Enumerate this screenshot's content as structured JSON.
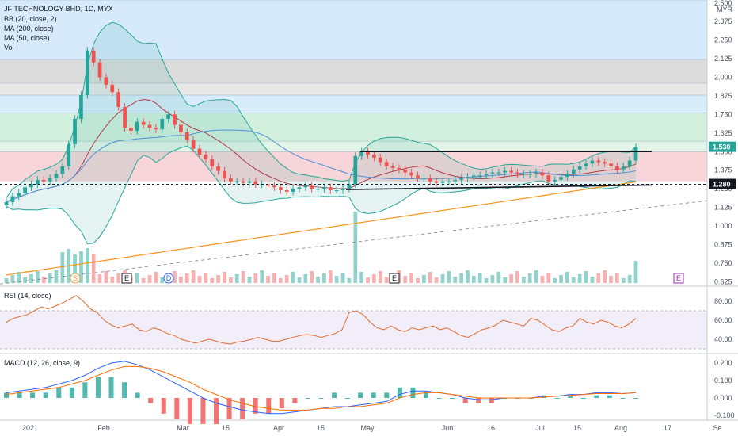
{
  "chart_data": {
    "type": "candlestick",
    "title": "JF TECHNOLOGY BHD, 1D, MYX",
    "currency": "MYR",
    "indicators": [
      "BB (20, close, 2)",
      "MA (200, close)",
      "MA (50, close)",
      "Vol"
    ],
    "price_axis": {
      "ticks": [
        "2.500",
        "2.375",
        "2.250",
        "2.125",
        "2.000",
        "1.875",
        "1.750",
        "1.625",
        "1.500",
        "1.375",
        "1.250",
        "1.125",
        "1.000",
        "0.875",
        "0.750",
        "0.625"
      ],
      "range": [
        0.6,
        2.52
      ]
    },
    "last_price": "1.530",
    "support_line_label": "1.280",
    "x_ticks": [
      "2021",
      "Feb",
      "Mar",
      "15",
      "Apr",
      "15",
      "May",
      "Jun",
      "16",
      "Jul",
      "15",
      "Aug",
      "17",
      "Se"
    ],
    "event_markers": [
      "S",
      "E",
      "D",
      "E",
      "E"
    ],
    "price_bands": [
      {
        "from": 2.12,
        "to": 2.52,
        "color": "#d6eafc"
      },
      {
        "from": 1.96,
        "to": 2.12,
        "color": "#dcdcdc"
      },
      {
        "from": 1.88,
        "to": 1.96,
        "color": "#e8e8e8"
      },
      {
        "from": 1.76,
        "to": 1.88,
        "color": "#d8ecfa"
      },
      {
        "from": 1.57,
        "to": 1.76,
        "color": "#d3efdd"
      },
      {
        "from": 1.5,
        "to": 1.57,
        "color": "#e3f4e8"
      },
      {
        "from": 1.3,
        "to": 1.5,
        "color": "#f7d5d8"
      }
    ],
    "close_series": [
      1.16,
      1.2,
      1.22,
      1.26,
      1.28,
      1.31,
      1.3,
      1.32,
      1.35,
      1.4,
      1.55,
      1.72,
      1.88,
      2.18,
      2.1,
      2.0,
      1.95,
      1.9,
      1.8,
      1.66,
      1.64,
      1.7,
      1.68,
      1.66,
      1.65,
      1.72,
      1.75,
      1.68,
      1.63,
      1.58,
      1.52,
      1.48,
      1.45,
      1.4,
      1.37,
      1.32,
      1.3,
      1.3,
      1.29,
      1.3,
      1.28,
      1.28,
      1.27,
      1.26,
      1.24,
      1.23,
      1.25,
      1.26,
      1.27,
      1.25,
      1.25,
      1.26,
      1.24,
      1.24,
      1.25,
      1.28,
      1.47,
      1.5,
      1.48,
      1.46,
      1.43,
      1.4,
      1.39,
      1.38,
      1.36,
      1.34,
      1.32,
      1.32,
      1.3,
      1.29,
      1.3,
      1.3,
      1.31,
      1.32,
      1.33,
      1.34,
      1.34,
      1.35,
      1.36,
      1.36,
      1.37,
      1.36,
      1.35,
      1.35,
      1.35,
      1.36,
      1.34,
      1.3,
      1.31,
      1.33,
      1.35,
      1.38,
      1.4,
      1.42,
      1.44,
      1.43,
      1.42,
      1.4,
      1.38,
      1.4,
      1.44,
      1.53
    ],
    "rsi": {
      "label": "RSI (14, close)",
      "ticks": [
        "80.00",
        "60.00",
        "40.00"
      ],
      "values": [
        58,
        62,
        64,
        66,
        70,
        74,
        72,
        75,
        78,
        82,
        86,
        80,
        72,
        68,
        60,
        55,
        52,
        54,
        56,
        50,
        48,
        52,
        50,
        46,
        44,
        40,
        38,
        36,
        38,
        40,
        38,
        36,
        35,
        37,
        38,
        40,
        42,
        40,
        38,
        38,
        40,
        42,
        44,
        45,
        44,
        42,
        44,
        46,
        50,
        68,
        70,
        66,
        58,
        52,
        50,
        54,
        50,
        48,
        52,
        50,
        52,
        54,
        50,
        52,
        48,
        44,
        42,
        46,
        50,
        52,
        55,
        60,
        58,
        56,
        54,
        62,
        60,
        55,
        50,
        48,
        52,
        54,
        62,
        58,
        56,
        60,
        58,
        54,
        52,
        56,
        62
      ]
    },
    "macd": {
      "label": "MACD (12, 26, close, 9)",
      "ticks": [
        "0.200",
        "0.100",
        "0.000",
        "-0.100"
      ],
      "macd_line": [
        0.03,
        0.04,
        0.05,
        0.06,
        0.08,
        0.1,
        0.13,
        0.17,
        0.2,
        0.21,
        0.19,
        0.16,
        0.12,
        0.08,
        0.04,
        0.0,
        -0.03,
        -0.05,
        -0.07,
        -0.08,
        -0.09,
        -0.09,
        -0.08,
        -0.07,
        -0.06,
        -0.05,
        -0.05,
        -0.04,
        -0.03,
        -0.02,
        0.02,
        0.04,
        0.04,
        0.03,
        0.02,
        0.0,
        -0.01,
        -0.01,
        0.0,
        0.0,
        0.0,
        0.01,
        0.01,
        0.02,
        0.02,
        0.03,
        0.03,
        0.025,
        0.03
      ],
      "signal_line": [
        0.02,
        0.03,
        0.04,
        0.05,
        0.06,
        0.08,
        0.1,
        0.13,
        0.16,
        0.18,
        0.18,
        0.17,
        0.15,
        0.12,
        0.09,
        0.05,
        0.02,
        -0.01,
        -0.03,
        -0.05,
        -0.06,
        -0.07,
        -0.07,
        -0.07,
        -0.06,
        -0.06,
        -0.05,
        -0.05,
        -0.04,
        -0.03,
        0.0,
        0.02,
        0.03,
        0.03,
        0.02,
        0.01,
        0.0,
        0.0,
        0.0,
        0.0,
        0.0,
        0.005,
        0.01,
        0.015,
        0.02,
        0.025,
        0.025,
        0.025,
        0.03
      ]
    }
  }
}
